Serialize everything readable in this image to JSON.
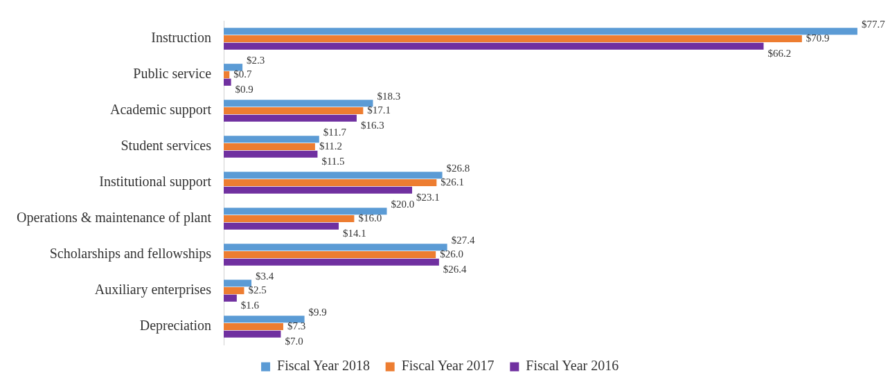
{
  "chart_data": {
    "type": "bar",
    "orientation": "horizontal",
    "categories": [
      "Instruction",
      "Public service",
      "Academic support",
      "Student services",
      "Institutional support",
      "Operations & maintenance of plant",
      "Scholarships and fellowships",
      "Auxiliary enterprises",
      "Depreciation"
    ],
    "series": [
      {
        "name": "Fiscal Year 2018",
        "color": "#5b9bd5",
        "values": [
          77.7,
          2.3,
          18.3,
          11.7,
          26.8,
          20.0,
          27.4,
          3.4,
          9.9
        ],
        "value_labels": [
          "$77.7",
          "$2.3",
          "$18.3",
          "$11.7",
          "$26.8",
          "$20.0",
          "$27.4",
          "$3.4",
          "$9.9"
        ]
      },
      {
        "name": "Fiscal Year 2017",
        "color": "#ed7d31",
        "values": [
          70.9,
          0.7,
          17.1,
          11.2,
          26.1,
          16.0,
          26.0,
          2.5,
          7.3
        ],
        "value_labels": [
          "$70.9",
          "$0.7",
          "$17.1",
          "$11.2",
          "$26.1",
          "$16.0",
          "$26.0",
          "$2.5",
          "$7.3"
        ]
      },
      {
        "name": "Fiscal Year 2016",
        "color": "#7030a0",
        "values": [
          66.2,
          0.9,
          16.3,
          11.5,
          23.1,
          14.1,
          26.4,
          1.6,
          7.0
        ],
        "value_labels": [
          "$66.2",
          "$0.9",
          "$16.3",
          "$11.5",
          "$23.1",
          "$14.1",
          "$26.4",
          "$1.6",
          "$7.0"
        ]
      }
    ],
    "grid": false,
    "legend": "bottom"
  }
}
